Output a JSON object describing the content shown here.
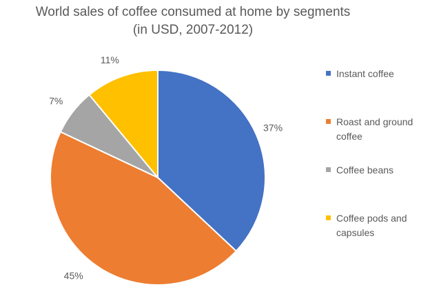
{
  "chart_data": {
    "type": "pie",
    "title": "World sales of coffee consumed at home by segments",
    "subtitle": "(in USD, 2007-2012)",
    "categories": [
      "Instant coffee",
      "Roast and ground coffee",
      "Coffee beans",
      "Coffee pods and capsules"
    ],
    "values": [
      37,
      45,
      7,
      11
    ],
    "data_labels": [
      "37%",
      "45%",
      "7%",
      "11%"
    ],
    "colors": [
      "#4472c4",
      "#ed7d31",
      "#a5a5a5",
      "#ffc000"
    ],
    "legend_position": "right",
    "start_angle_deg": 0,
    "direction": "clockwise"
  }
}
